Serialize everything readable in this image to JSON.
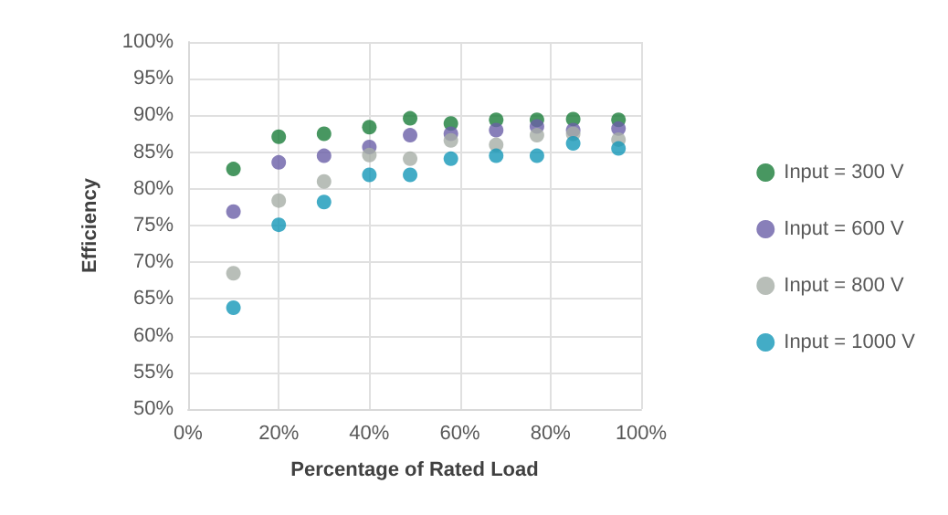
{
  "chart_data": {
    "type": "scatter",
    "xlabel": "Percentage of Rated Load",
    "ylabel": "Efficiency",
    "xlim": [
      0,
      100
    ],
    "xticks": [
      {
        "value": 0,
        "label": "0%"
      },
      {
        "value": 20,
        "label": "20%"
      },
      {
        "value": 40,
        "label": "40%"
      },
      {
        "value": 60,
        "label": "60%"
      },
      {
        "value": 80,
        "label": "80%"
      },
      {
        "value": 100,
        "label": "100%"
      }
    ],
    "ylim": [
      50,
      100
    ],
    "yticks": [
      {
        "value": 50,
        "label": "50%"
      },
      {
        "value": 55,
        "label": "55%"
      },
      {
        "value": 60,
        "label": "60%"
      },
      {
        "value": 65,
        "label": "65%"
      },
      {
        "value": 70,
        "label": "70%"
      },
      {
        "value": 75,
        "label": "75%"
      },
      {
        "value": 80,
        "label": "80%"
      },
      {
        "value": 85,
        "label": "85%"
      },
      {
        "value": 90,
        "label": "90%"
      },
      {
        "value": 95,
        "label": "95%"
      },
      {
        "value": 100,
        "label": "100%"
      }
    ],
    "x": [
      10,
      20,
      30,
      40,
      49,
      58,
      68,
      77,
      85,
      95
    ],
    "series": [
      {
        "name": "Input = 300 V",
        "color": "#1a7d3a",
        "values": [
          82.7,
          87.1,
          87.5,
          88.4,
          89.6,
          88.9,
          89.4,
          89.4,
          89.5,
          89.4
        ]
      },
      {
        "name": "Input = 600 V",
        "color": "#6a5fa8",
        "values": [
          76.9,
          83.6,
          84.5,
          85.7,
          87.3,
          87.5,
          88,
          88.5,
          88,
          88.2
        ]
      },
      {
        "name": "Input = 800 V",
        "color": "#a6aea6",
        "values": [
          68.5,
          78.4,
          81,
          84.6,
          84.1,
          86.6,
          86,
          87.3,
          87.5,
          86.7
        ]
      },
      {
        "name": "Input = 1000 V",
        "color": "#1497b8",
        "values": [
          63.8,
          75.1,
          78.2,
          81.9,
          81.9,
          84.1,
          84.5,
          84.5,
          86.2,
          85.5
        ]
      }
    ],
    "grid": true,
    "legend": "right",
    "marker": "circle"
  }
}
